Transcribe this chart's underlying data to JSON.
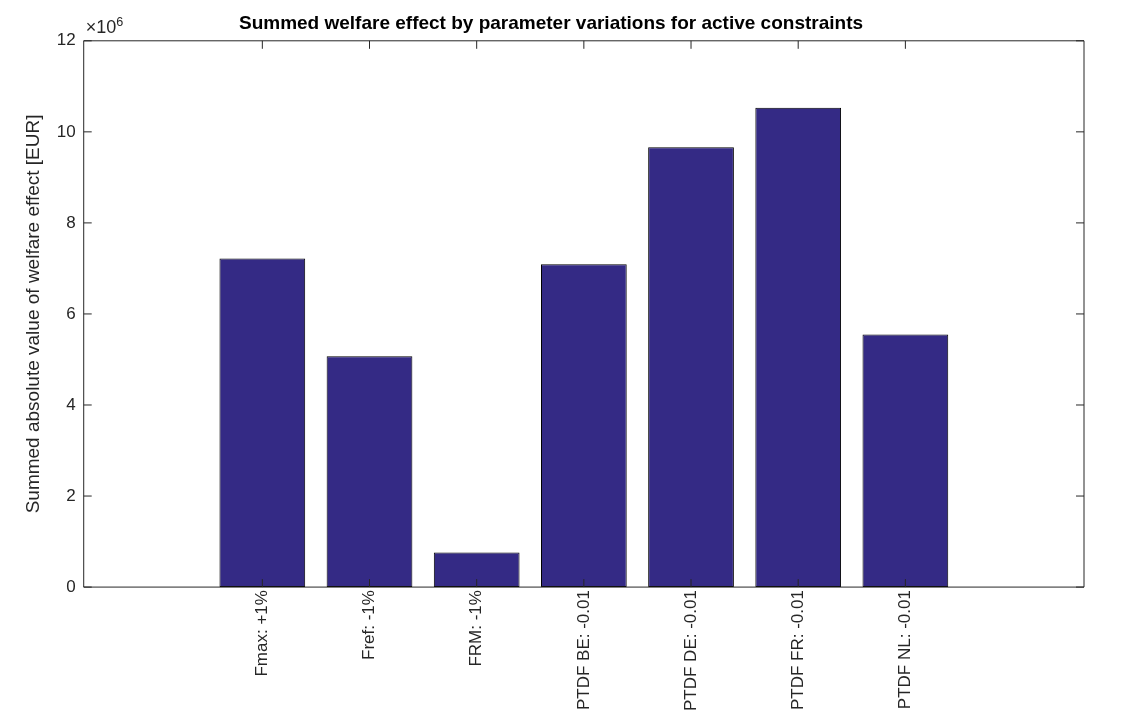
{
  "chart_data": {
    "type": "bar",
    "title": "Summed welfare effect by parameter variations for active constraints",
    "ylabel": "Summed absolute value of welfare effect [EUR]",
    "categories": [
      "Fmax: +1%",
      "Fref: -1%",
      "FRM: -1%",
      "PTDF BE: -0.01",
      "PTDF DE: -0.01",
      "PTDF FR: -0.01",
      "PTDF NL: -0.01"
    ],
    "values": [
      7.22,
      5.07,
      0.76,
      7.09,
      9.66,
      10.53,
      5.55
    ],
    "color": "#342a85",
    "ylim": [
      0,
      12
    ],
    "yticks": [
      0,
      2,
      4,
      6,
      8,
      10,
      12
    ],
    "grid": false,
    "annotations": [
      "×10$^{6}$"
    ]
  }
}
